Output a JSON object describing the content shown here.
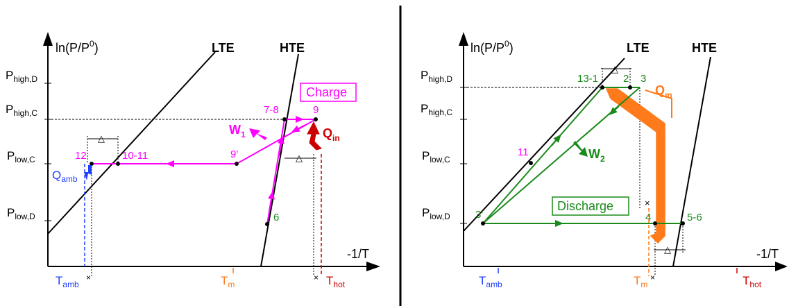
{
  "colors": {
    "magenta": "#ff00ff",
    "green": "#1a8a1a",
    "orange": "#ff7a1a",
    "red": "#cc0000",
    "blue": "#1f3fff",
    "black": "#000000"
  },
  "left": {
    "y_axis": {
      "main": "ln(P/P",
      "sup": "0",
      "close": ")"
    },
    "x_axis": "-1/T",
    "lines": {
      "lte": "LTE",
      "hte": "HTE"
    },
    "pressures": {
      "p_high_d": {
        "main": "P",
        "sub": "high,D"
      },
      "p_high_c": {
        "main": "P",
        "sub": "high,C"
      },
      "p_low_c": {
        "main": "P",
        "sub": "low,C"
      },
      "p_low_d": {
        "main": "P",
        "sub": "low,D"
      }
    },
    "temps": {
      "t_amb": {
        "main": "T",
        "sub": "amb"
      },
      "t_m": {
        "main": "T",
        "sub": "m"
      },
      "t_hot": {
        "main": "T",
        "sub": "hot"
      }
    },
    "points": {
      "p12": "12",
      "p10_11": "10-11",
      "p9p": "9'",
      "p7_8": "7-8",
      "p9": "9",
      "p6": "6"
    },
    "flows": {
      "w1": {
        "main": "W",
        "sub": "1"
      },
      "qin": {
        "main": "Q",
        "sub": "in"
      },
      "qamb": {
        "main": "Q",
        "sub": "amb"
      }
    },
    "box_label": "Charge"
  },
  "right": {
    "y_axis": {
      "main": "ln(P/P",
      "sup": "0",
      "close": ")"
    },
    "x_axis": "-1/T",
    "lines": {
      "lte": "LTE",
      "hte": "HTE"
    },
    "pressures": {
      "p_high_d": {
        "main": "P",
        "sub": "high,D"
      },
      "p_high_c": {
        "main": "P",
        "sub": "high,C"
      },
      "p_low_c": {
        "main": "P",
        "sub": "low,C"
      },
      "p_low_d": {
        "main": "P",
        "sub": "low,D"
      }
    },
    "temps": {
      "t_amb": {
        "main": "T",
        "sub": "amb"
      },
      "t_m": {
        "main": "T",
        "sub": "m"
      },
      "t_hot": {
        "main": "T",
        "sub": "hot"
      }
    },
    "points": {
      "p13_1": "13-1",
      "p2": "2",
      "p3": "3",
      "p11": "11",
      "p3p": "3'",
      "p4": "4",
      "p5_6": "5-6"
    },
    "flows": {
      "w2": {
        "main": "W",
        "sub": "2"
      },
      "qm": {
        "main": "Q",
        "sub": "m"
      }
    },
    "box_label": "Discharge"
  },
  "symbols": {
    "delta": "△",
    "cross": "×"
  }
}
